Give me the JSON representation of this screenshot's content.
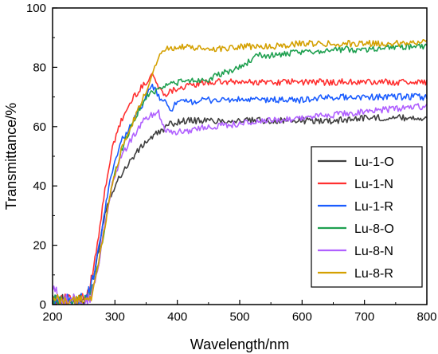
{
  "chart_data": {
    "type": "line",
    "xlabel": "Wavelength/nm",
    "ylabel": "Transmittance/%",
    "xlim": [
      200,
      800
    ],
    "ylim": [
      0,
      100
    ],
    "xticks": [
      200,
      300,
      400,
      500,
      600,
      700,
      800
    ],
    "yticks": [
      0,
      20,
      40,
      60,
      80,
      100
    ],
    "grid": false,
    "legend_position": "bottom-right",
    "series": [
      {
        "name": "Lu-1-O",
        "color": "#404040",
        "x": [
          200,
          220,
          240,
          255,
          265,
          275,
          285,
          295,
          310,
          330,
          350,
          370,
          390,
          410,
          450,
          500,
          550,
          600,
          650,
          700,
          750,
          800
        ],
        "y": [
          1,
          1,
          1,
          2,
          8,
          20,
          32,
          38,
          44,
          50,
          55,
          58,
          61,
          62,
          62,
          62,
          62,
          62,
          62,
          63,
          63,
          63
        ]
      },
      {
        "name": "Lu-1-N",
        "color": "#ff3030",
        "x": [
          200,
          220,
          240,
          255,
          265,
          275,
          285,
          295,
          310,
          330,
          350,
          360,
          370,
          380,
          400,
          450,
          500,
          550,
          600,
          650,
          700,
          750,
          800
        ],
        "y": [
          1,
          1,
          1,
          2,
          12,
          25,
          40,
          52,
          62,
          70,
          75,
          78,
          73,
          71,
          73,
          75,
          75,
          75,
          75,
          75,
          75,
          75,
          75
        ]
      },
      {
        "name": "Lu-1-R",
        "color": "#1a5cff",
        "x": [
          200,
          220,
          240,
          255,
          265,
          275,
          285,
          295,
          310,
          330,
          350,
          360,
          370,
          390,
          400,
          450,
          500,
          550,
          600,
          650,
          700,
          750,
          800
        ],
        "y": [
          1,
          1,
          1,
          2,
          8,
          20,
          33,
          45,
          55,
          62,
          70,
          74,
          70,
          66,
          68,
          69,
          69,
          69,
          69,
          70,
          70,
          70,
          70
        ]
      },
      {
        "name": "Lu-8-O",
        "color": "#1fa050",
        "x": [
          200,
          220,
          240,
          255,
          265,
          275,
          285,
          295,
          310,
          330,
          350,
          370,
          380,
          400,
          450,
          500,
          530,
          550,
          600,
          650,
          700,
          750,
          800
        ],
        "y": [
          1,
          1,
          1,
          1,
          6,
          15,
          28,
          40,
          52,
          62,
          70,
          73,
          74,
          75,
          76,
          80,
          84,
          84,
          85,
          86,
          86,
          87,
          87
        ]
      },
      {
        "name": "Lu-8-N",
        "color": "#b060ff",
        "x": [
          200,
          220,
          240,
          255,
          265,
          275,
          285,
          295,
          310,
          330,
          350,
          370,
          380,
          400,
          450,
          500,
          550,
          600,
          650,
          700,
          750,
          800
        ],
        "y": [
          5,
          1,
          1,
          1,
          5,
          15,
          28,
          40,
          50,
          57,
          63,
          65,
          59,
          58,
          60,
          61,
          62,
          63,
          64,
          65,
          66,
          67
        ]
      },
      {
        "name": "Lu-8-R",
        "color": "#d4a000",
        "x": [
          200,
          220,
          240,
          255,
          265,
          275,
          285,
          295,
          310,
          330,
          350,
          360,
          370,
          380,
          400,
          450,
          500,
          550,
          600,
          650,
          700,
          750,
          800
        ],
        "y": [
          1,
          1,
          1,
          1,
          5,
          15,
          28,
          40,
          52,
          62,
          72,
          78,
          84,
          86,
          87,
          86,
          87,
          87,
          88,
          88,
          88,
          88,
          89
        ]
      }
    ]
  }
}
